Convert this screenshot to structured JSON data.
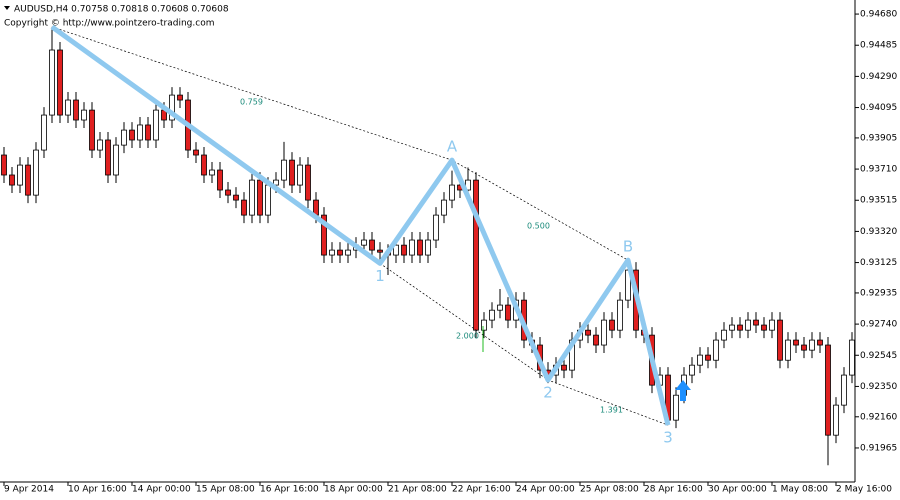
{
  "header": "AUDUSD,H4  0.70758 0.70818 0.70608 0.70608",
  "copyright": "Copyright © http://www.pointzero-trading.com",
  "chart_data": {
    "type": "candlestick",
    "categories": [
      "9 Apr 2014",
      null,
      null,
      null,
      null,
      null,
      null,
      null,
      "10 Apr 16:00",
      null,
      null,
      null,
      null,
      null,
      null,
      null,
      "14 Apr 00:00",
      null,
      null,
      null,
      null,
      null,
      null,
      null,
      "15 Apr 08:00",
      null,
      null,
      null,
      null,
      null,
      null,
      null,
      "16 Apr 16:00",
      null,
      null,
      null,
      null,
      null,
      null,
      null,
      "18 Apr 00:00",
      null,
      null,
      null,
      null,
      null,
      null,
      null,
      "21 Apr 08:00",
      null,
      null,
      null,
      null,
      null,
      null,
      null,
      "22 Apr 16:00",
      null,
      null,
      null,
      null,
      null,
      null,
      null,
      "24 Apr 00:00",
      null,
      null,
      null,
      null,
      null,
      null,
      null,
      "25 Apr 08:00",
      null,
      null,
      null,
      null,
      null,
      null,
      null,
      "28 Apr 16:00",
      null,
      null,
      null,
      null,
      null,
      null,
      null,
      "30 Apr 00:00",
      null,
      null,
      null,
      null,
      null,
      null,
      null,
      "1 May 08:00",
      null,
      null,
      null,
      null,
      null,
      null,
      null,
      "2 May 16:00",
      null,
      null
    ],
    "open": [
      0.93798,
      0.93673,
      0.9361,
      0.93735,
      0.93547,
      0.93829,
      0.94048,
      0.94455,
      0.94048,
      0.94142,
      0.94017,
      0.94079,
      0.93829,
      0.93892,
      0.93673,
      0.9386,
      0.93954,
      0.93892,
      0.93986,
      0.93892,
      0.94079,
      0.94017,
      0.94173,
      0.94142,
      0.93829,
      0.93798,
      0.93673,
      0.93704,
      0.93579,
      0.93547,
      0.93516,
      0.93422,
      0.93641,
      0.93422,
      0.9361,
      0.93641,
      0.93766,
      0.9361,
      0.93735,
      0.93516,
      0.93422,
      0.93172,
      0.93203,
      0.93172,
      0.93203,
      0.93234,
      0.93266,
      0.93203,
      0.9319,
      0.93172,
      0.93234,
      0.93172,
      0.93266,
      0.93172,
      0.93266,
      0.93422,
      0.93516,
      0.9361,
      0.93579,
      0.93641,
      0.92702,
      0.92765,
      0.92827,
      0.92859,
      0.92765,
      0.9289,
      0.9264,
      0.92609,
      0.92452,
      0.92421,
      0.92483,
      0.92452,
      0.9264,
      0.92702,
      0.92671,
      0.92609,
      0.92765,
      0.92702,
      0.9289,
      0.93078,
      0.92702,
      0.92671,
      0.92358,
      0.92421,
      0.92139,
      0.92295,
      0.92421,
      0.92483,
      0.92546,
      0.92514,
      0.9264,
      0.92702,
      0.92734,
      0.92702,
      0.92765,
      0.92734,
      0.92702,
      0.92765,
      0.92514,
      0.9264,
      0.92609,
      0.92577,
      0.9264,
      0.92609,
      0.92045,
      0.92233,
      0.92421
    ],
    "high": [
      0.93848,
      0.93723,
      0.93785,
      0.93785,
      0.93879,
      0.94098,
      0.946,
      0.94505,
      0.94192,
      0.94192,
      0.94129,
      0.94129,
      0.93942,
      0.93942,
      0.9391,
      0.94004,
      0.94004,
      0.94036,
      0.94036,
      0.94129,
      0.94129,
      0.94223,
      0.94223,
      0.94192,
      0.93879,
      0.93848,
      0.93754,
      0.93754,
      0.93629,
      0.93597,
      0.93566,
      0.93691,
      0.93691,
      0.9366,
      0.93691,
      0.9388,
      0.93816,
      0.93785,
      0.93785,
      0.93566,
      0.93472,
      0.93253,
      0.93253,
      0.93253,
      0.93284,
      0.93316,
      0.93316,
      0.93253,
      0.9324,
      0.93284,
      0.93284,
      0.93316,
      0.93316,
      0.93316,
      0.93472,
      0.93566,
      0.937,
      0.9366,
      0.9372,
      0.93691,
      0.92815,
      0.92877,
      0.9296,
      0.92909,
      0.9294,
      0.9294,
      0.9269,
      0.92659,
      0.92502,
      0.92533,
      0.92533,
      0.9269,
      0.92752,
      0.92752,
      0.92721,
      0.92815,
      0.92815,
      0.9294,
      0.9314,
      0.93128,
      0.92752,
      0.92721,
      0.92471,
      0.92471,
      0.92345,
      0.92471,
      0.92533,
      0.92596,
      0.92596,
      0.9269,
      0.92752,
      0.92784,
      0.92784,
      0.92815,
      0.92815,
      0.92784,
      0.92815,
      0.92815,
      0.9269,
      0.9269,
      0.92659,
      0.9269,
      0.9269,
      0.92659,
      0.92283,
      0.92471,
      0.9269
    ],
    "low": [
      0.93623,
      0.9356,
      0.9356,
      0.93497,
      0.93497,
      0.93779,
      0.93998,
      0.93998,
      0.93998,
      0.93967,
      0.93967,
      0.93779,
      0.93779,
      0.93623,
      0.93623,
      0.9381,
      0.93842,
      0.93842,
      0.93842,
      0.93842,
      0.93967,
      0.93967,
      0.94092,
      0.93779,
      0.93748,
      0.93623,
      0.93623,
      0.93529,
      0.93497,
      0.93466,
      0.93372,
      0.93372,
      0.93372,
      0.93372,
      0.9356,
      0.93591,
      0.9356,
      0.9356,
      0.93466,
      0.93372,
      0.93122,
      0.93122,
      0.93122,
      0.93122,
      0.93153,
      0.93184,
      0.93153,
      0.9314,
      0.93047,
      0.93122,
      0.93122,
      0.93122,
      0.93122,
      0.93122,
      0.93216,
      0.93372,
      0.93466,
      0.93529,
      0.93529,
      0.92652,
      0.92652,
      0.92715,
      0.92777,
      0.92715,
      0.92715,
      0.9259,
      0.92559,
      0.92402,
      0.92371,
      0.92371,
      0.92402,
      0.92402,
      0.9259,
      0.92621,
      0.92559,
      0.92559,
      0.92652,
      0.92652,
      0.9284,
      0.92652,
      0.92621,
      0.92308,
      0.92308,
      0.92108,
      0.92089,
      0.92245,
      0.92371,
      0.92433,
      0.92464,
      0.92464,
      0.9259,
      0.92652,
      0.92652,
      0.92652,
      0.92684,
      0.92652,
      0.92652,
      0.92464,
      0.92464,
      0.92559,
      0.92527,
      0.92527,
      0.92559,
      0.91857,
      0.91995,
      0.92183,
      0.92371
    ],
    "close": [
      0.93673,
      0.9361,
      0.93735,
      0.93547,
      0.93829,
      0.94048,
      0.94455,
      0.94048,
      0.94142,
      0.94017,
      0.94079,
      0.93829,
      0.93892,
      0.93673,
      0.9386,
      0.93954,
      0.93892,
      0.93986,
      0.93892,
      0.94079,
      0.94017,
      0.94173,
      0.94142,
      0.93829,
      0.93798,
      0.93673,
      0.93704,
      0.93579,
      0.93547,
      0.93516,
      0.93422,
      0.93641,
      0.93422,
      0.9361,
      0.93641,
      0.93766,
      0.9361,
      0.93735,
      0.93516,
      0.93422,
      0.93172,
      0.93203,
      0.93172,
      0.93203,
      0.93234,
      0.93266,
      0.93203,
      0.9319,
      0.93172,
      0.93234,
      0.93172,
      0.93266,
      0.93172,
      0.93266,
      0.93422,
      0.93516,
      0.9361,
      0.93579,
      0.93641,
      0.92702,
      0.92765,
      0.92827,
      0.92859,
      0.92765,
      0.9289,
      0.9264,
      0.92609,
      0.92452,
      0.92421,
      0.92483,
      0.92452,
      0.9264,
      0.92702,
      0.92671,
      0.92609,
      0.92765,
      0.92702,
      0.9289,
      0.93078,
      0.92702,
      0.92671,
      0.92358,
      0.92421,
      0.92139,
      0.92295,
      0.92421,
      0.92483,
      0.92546,
      0.92514,
      0.9264,
      0.92702,
      0.92734,
      0.92702,
      0.92765,
      0.92734,
      0.92702,
      0.92765,
      0.92514,
      0.9264,
      0.92609,
      0.92577,
      0.9264,
      0.92609,
      0.92045,
      0.92233,
      0.92421,
      0.9264
    ],
    "up_color": "#ffffff",
    "down_color": "#e02020",
    "ylim": [
      0.91752,
      0.94768
    ],
    "yticks": [
      {
        "value": 0.9468,
        "label": "0.94680"
      },
      {
        "value": 0.94485,
        "label": "0.94485"
      },
      {
        "value": 0.9429,
        "label": "0.94290"
      },
      {
        "value": 0.94095,
        "label": "0.94095"
      },
      {
        "value": 0.93905,
        "label": "0.93905"
      },
      {
        "value": 0.9371,
        "label": "0.93710"
      },
      {
        "value": 0.93515,
        "label": "0.93515"
      },
      {
        "value": 0.9332,
        "label": "0.93320"
      },
      {
        "value": 0.93125,
        "label": "0.93125"
      },
      {
        "value": 0.92935,
        "label": "0.92935"
      },
      {
        "value": 0.9274,
        "label": "0.92740"
      },
      {
        "value": 0.92545,
        "label": "0.92545"
      },
      {
        "value": 0.9235,
        "label": "0.92350"
      },
      {
        "value": 0.9216,
        "label": "0.92160"
      },
      {
        "value": 0.91965,
        "label": "0.91965"
      }
    ],
    "pattern": {
      "color": "#8fc9ef",
      "labels": [
        null,
        "1",
        "A",
        "2",
        "B",
        "3"
      ],
      "bars": [
        6,
        47,
        56,
        68,
        78,
        83
      ],
      "prices": [
        0.946,
        0.9312,
        0.93766,
        0.9239,
        0.9314,
        0.92108
      ]
    },
    "annotations": [
      "0.759",
      "0.500",
      "2.000",
      "1.391"
    ]
  }
}
